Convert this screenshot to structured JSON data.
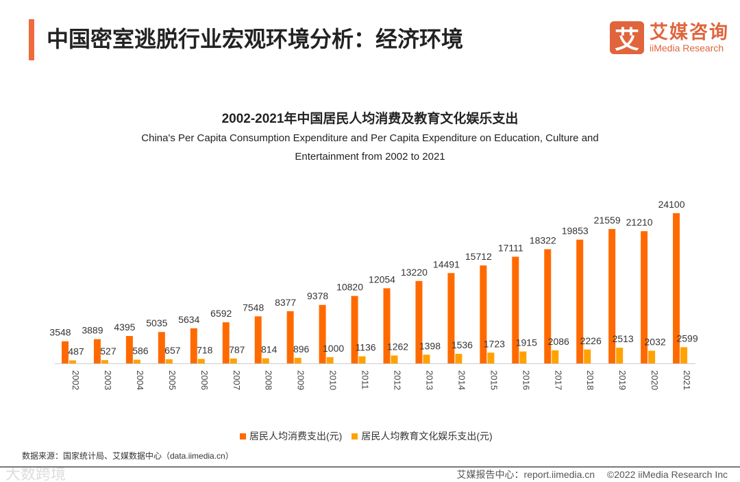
{
  "header": {
    "title": "中国密室逃脱行业宏观环境分析：经济环境",
    "logo_cn": "艾媒咨询",
    "logo_en": "iiMedia Research",
    "logo_mark": "艾"
  },
  "chart_data": {
    "type": "bar",
    "title": "2002-2021年中国居民人均消费及教育文化娱乐支出",
    "subtitle": "China's Per Capita Consumption Expenditure and Per Capita Expenditure on Education, Culture and Entertainment from 2002 to 2021",
    "categories": [
      "2002",
      "2003",
      "2004",
      "2005",
      "2006",
      "2007",
      "2008",
      "2009",
      "2010",
      "2011",
      "2012",
      "2013",
      "2014",
      "2015",
      "2016",
      "2017",
      "2018",
      "2019",
      "2020",
      "2021"
    ],
    "series": [
      {
        "name": "居民人均消费支出(元)",
        "color": "#ff6a00",
        "values": [
          3548,
          3889,
          4395,
          5035,
          5634,
          6592,
          7548,
          8377,
          9378,
          10820,
          12054,
          13220,
          14491,
          15712,
          17111,
          18322,
          19853,
          21559,
          21210,
          24100
        ]
      },
      {
        "name": "居民人均教育文化娱乐支出(元)",
        "color": "#ffa200",
        "values": [
          487,
          527,
          586,
          657,
          718,
          787,
          814,
          896,
          1000,
          1136,
          1262,
          1398,
          1536,
          1723,
          1915,
          2086,
          2226,
          2513,
          2032,
          2599
        ]
      }
    ],
    "ylim": [
      0,
      26400
    ],
    "legend": "bottom",
    "grid": false
  },
  "source": "数据来源：国家统计局、艾媒数据中心（data.iimedia.cn）",
  "footer": "艾媒报告中心：report.iimedia.cn　 ©2022  iiMedia Research  Inc",
  "watermark": "大数跨境"
}
